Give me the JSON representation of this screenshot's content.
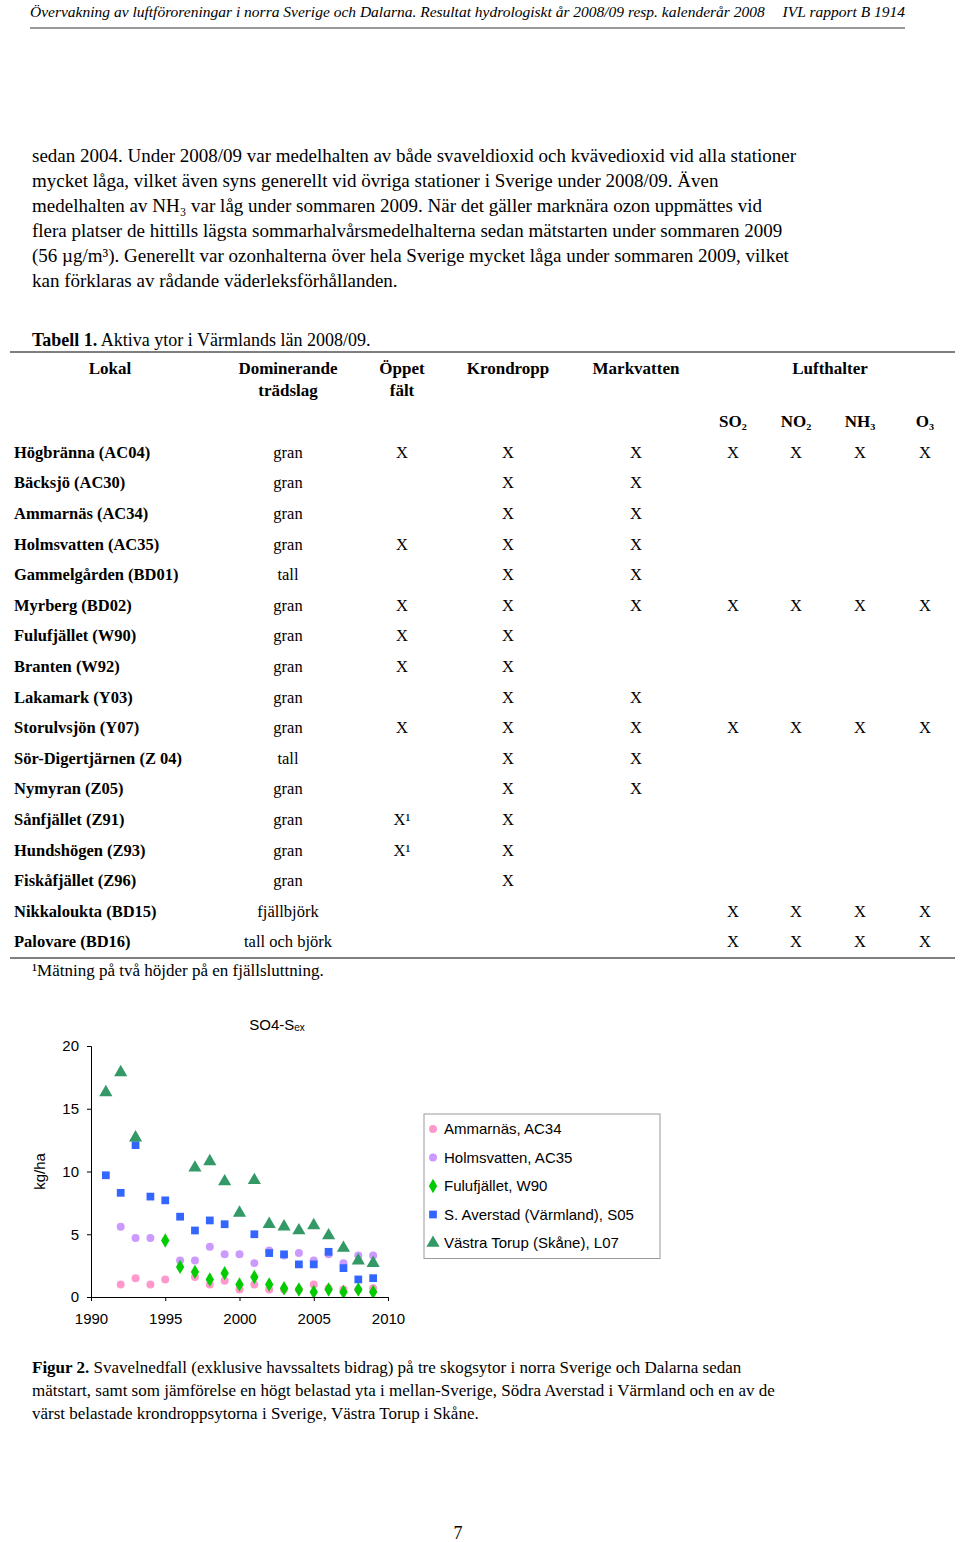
{
  "header": {
    "title": "Övervakning av luftföroreningar i norra Sverige och Dalarna. Resultat hydrologiskt år 2008/09 resp. kalenderår 2008",
    "report": "IVL rapport B 1914"
  },
  "body": [
    "sedan 2004. Under 2008/09 var medelhalten av både svaveldioxid och kvävedioxid vid alla stationer",
    "mycket låga, vilket även syns generellt vid övriga stationer i Sverige under 2008/09. Även",
    "medelhalten av NH₃ var låg under sommaren 2009. När det gäller marknära ozon uppmättes vid",
    "flera platser de hittills lägsta sommarhalvårsmedelhalterna sedan mätstarten under sommaren 2009",
    "(56 µg/m³). Generellt var ozonhalterna över hela Sverige mycket låga under sommaren 2009, vilket",
    "kan förklaras av rådande väderleksförhållanden."
  ],
  "table": {
    "caption_label": "Tabell 1.",
    "caption_text": "Aktiva ytor i Värmlands län 2008/09.",
    "header": [
      [
        "Lokal"
      ],
      [
        "Dominerande",
        "trädslag"
      ],
      [
        "Öppet",
        "fält"
      ],
      [
        "Krondropp"
      ],
      [
        "Markvatten"
      ],
      [
        "Lufthalter"
      ]
    ],
    "subheader": [
      "SO₂",
      "NO₂",
      "NH₃",
      "O₃"
    ],
    "rows": [
      [
        "Högbränna (AC04)",
        "gran",
        "X",
        "X",
        "X",
        "X",
        "X",
        "X",
        "X"
      ],
      [
        "Bäcksjö (AC30)",
        "gran",
        null,
        "X",
        "X",
        null,
        null,
        null,
        null
      ],
      [
        "Ammarnäs (AC34)",
        "gran",
        null,
        "X",
        "X",
        null,
        null,
        null,
        null
      ],
      [
        "Holmsvatten (AC35)",
        "gran",
        "X",
        "X",
        "X",
        null,
        null,
        null,
        null
      ],
      [
        "Gammelgården (BD01)",
        "tall",
        null,
        "X",
        "X",
        null,
        null,
        null,
        null
      ],
      [
        "Myrberg (BD02)",
        "gran",
        "X",
        "X",
        "X",
        "X",
        "X",
        "X",
        "X"
      ],
      [
        "Fulufjället (W90)",
        "gran",
        "X",
        "X",
        null,
        null,
        null,
        null,
        null
      ],
      [
        "Branten (W92)",
        "gran",
        "X",
        "X",
        null,
        null,
        null,
        null,
        null
      ],
      [
        "Lakamark (Y03)",
        "gran",
        null,
        "X",
        "X",
        null,
        null,
        null,
        null
      ],
      [
        "Storulvsjön (Y07)",
        "gran",
        "X",
        "X",
        "X",
        "X",
        "X",
        "X",
        "X"
      ],
      [
        "Sör-Digertjärnen (Z 04)",
        "tall",
        null,
        "X",
        "X",
        null,
        null,
        null,
        null
      ],
      [
        "Nymyran (Z05)",
        "gran",
        null,
        "X",
        "X",
        null,
        null,
        null,
        null
      ],
      [
        "Sånfjället (Z91)",
        "gran",
        "X¹",
        "X",
        null,
        null,
        null,
        null,
        null
      ],
      [
        "Hundshögen (Z93)",
        "gran",
        "X¹",
        "X",
        null,
        null,
        null,
        null,
        null
      ],
      [
        "Fiskåfjället (Z96)",
        "gran",
        null,
        "X",
        null,
        null,
        null,
        null,
        null
      ],
      [
        "Nikkaloukta (BD15)",
        "fjällbjörk",
        null,
        null,
        null,
        "X",
        "X",
        "X",
        "X"
      ],
      [
        "Palovare (BD16)",
        "tall och björk",
        null,
        null,
        null,
        "X",
        "X",
        "X",
        "X"
      ]
    ],
    "footnote": "¹Mätning på två höjder på en fjällsluttning."
  },
  "chart_data": {
    "type": "scatter",
    "title": "SO4-Sₑₓ",
    "y_label": "kg/ha",
    "xlim": [
      1990,
      2010
    ],
    "ylim": [
      0,
      20
    ],
    "xticks": [
      1990,
      1995,
      2000,
      2005,
      2010
    ],
    "yticks": [
      0,
      5,
      10,
      15,
      20
    ],
    "legend": "right",
    "series": [
      {
        "name": "Ammarnäs, AC34",
        "color": "#ff99cc",
        "marker": "circle",
        "x": [
          1992,
          1993,
          1994,
          1995,
          1997,
          1998,
          1999,
          2000,
          2001,
          2002,
          2003,
          2004,
          2005,
          2006,
          2007,
          2008,
          2009
        ],
        "values": [
          1.0,
          1.5,
          1.0,
          1.4,
          1.6,
          1.0,
          1.3,
          0.6,
          1.0,
          0.6,
          0.6,
          0.6,
          1.0,
          0.7,
          0.6,
          0.6,
          0.7
        ]
      },
      {
        "name": "Holmsvatten, AC35",
        "color": "#cc99ff",
        "marker": "circle",
        "x": [
          1992,
          1993,
          1994,
          1996,
          1997,
          1998,
          1999,
          2000,
          2001,
          2002,
          2003,
          2004,
          2005,
          2006,
          2007,
          2008,
          2009
        ],
        "values": [
          5.6,
          4.7,
          4.7,
          2.9,
          2.9,
          4.0,
          3.4,
          3.4,
          2.7,
          3.7,
          3.3,
          3.5,
          2.9,
          3.4,
          2.7,
          3.3,
          3.3
        ]
      },
      {
        "name": "Fulufjället, W90",
        "color": "#00cc00",
        "marker": "diamond",
        "x": [
          1995,
          1996,
          1997,
          1998,
          1999,
          2000,
          2001,
          2002,
          2003,
          2004,
          2005,
          2006,
          2007,
          2008,
          2009
        ],
        "values": [
          4.5,
          2.4,
          2.0,
          1.4,
          1.9,
          1.0,
          1.6,
          1.0,
          0.7,
          0.6,
          0.4,
          0.6,
          0.4,
          0.6,
          0.4
        ]
      },
      {
        "name": "S. Averstad (Värmland), S05",
        "color": "#3366ff",
        "marker": "square",
        "x": [
          1991,
          1992,
          1993,
          1994,
          1995,
          1996,
          1997,
          1998,
          1999,
          2001,
          2002,
          2003,
          2004,
          2005,
          2006,
          2007,
          2008,
          2009
        ],
        "values": [
          9.7,
          8.3,
          12.1,
          8.0,
          7.7,
          6.4,
          5.3,
          6.1,
          5.8,
          5.0,
          3.5,
          3.4,
          2.6,
          2.6,
          3.6,
          2.3,
          1.4,
          1.5
        ]
      },
      {
        "name": "Västra Torup (Skåne), L07",
        "color": "#339966",
        "marker": "triangle",
        "x": [
          1991,
          1992,
          1993,
          1997,
          1998,
          1999,
          2000,
          2001,
          2002,
          2003,
          2004,
          2005,
          2006,
          2007,
          2008,
          2009
        ],
        "values": [
          16.3,
          17.9,
          12.7,
          10.3,
          10.8,
          9.2,
          6.7,
          9.3,
          5.8,
          5.6,
          5.3,
          5.7,
          4.9,
          3.9,
          2.9,
          2.7
        ]
      }
    ]
  },
  "figure_caption": {
    "label": "Figur 2.",
    "lines": [
      "Svavelnedfall (exklusive havssaltets bidrag) på tre skogsytor i norra Sverige och Dalarna sedan",
      "mätstart, samt som jämförelse en högt belastad yta i mellan-Sverige, Södra Averstad i Värmland och en av de",
      "värst belastade krondroppsytorna i Sverige, Västra Torup i Skåne."
    ]
  },
  "page_number": "7"
}
